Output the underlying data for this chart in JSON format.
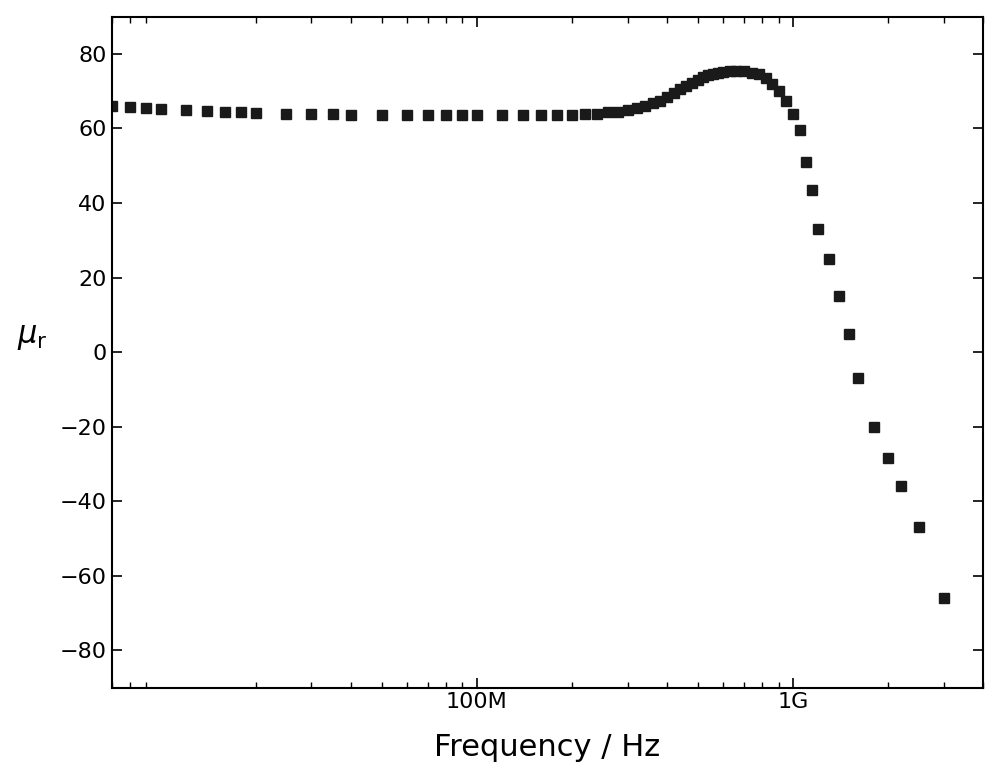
{
  "title": "",
  "xlabel": "Frequency / Hz",
  "ylabel": "$\\mu_{\\mathrm{r}}$",
  "xlim_log": [
    7000000.0,
    4000000000.0
  ],
  "ylim": [
    -90,
    90
  ],
  "yticks": [
    -80,
    -60,
    -40,
    -20,
    0,
    20,
    40,
    60,
    80
  ],
  "xtick_positions": [
    100000000.0,
    1000000000.0
  ],
  "xtick_labels": [
    "100M",
    "1G"
  ],
  "marker": "s",
  "marker_color": "#1a1a1a",
  "marker_size": 7,
  "background_color": "#ffffff",
  "xlabel_fontsize": 22,
  "ylabel_fontsize": 22,
  "tick_fontsize": 16,
  "frequencies": [
    7000000,
    8000000,
    9000000,
    10000000,
    12000000,
    14000000,
    16000000,
    18000000,
    20000000,
    25000000,
    30000000,
    35000000,
    40000000,
    50000000,
    60000000,
    70000000,
    80000000,
    90000000,
    100000000,
    120000000,
    140000000,
    160000000,
    180000000,
    200000000,
    220000000,
    240000000,
    260000000,
    280000000,
    300000000,
    320000000,
    340000000,
    360000000,
    380000000,
    400000000,
    420000000,
    440000000,
    460000000,
    480000000,
    500000000,
    520000000,
    540000000,
    560000000,
    580000000,
    600000000,
    630000000,
    660000000,
    700000000,
    740000000,
    780000000,
    820000000,
    860000000,
    900000000,
    950000000,
    1000000000,
    1050000000,
    1100000000,
    1150000000,
    1200000000,
    1300000000,
    1400000000,
    1500000000,
    1600000000,
    1800000000,
    2000000000,
    2200000000,
    2500000000,
    3000000000
  ],
  "mu_r": [
    66.0,
    65.8,
    65.5,
    65.3,
    65.0,
    64.8,
    64.5,
    64.3,
    64.2,
    64.0,
    63.9,
    63.8,
    63.7,
    63.6,
    63.5,
    63.5,
    63.5,
    63.5,
    63.5,
    63.5,
    63.5,
    63.5,
    63.6,
    63.7,
    63.8,
    64.0,
    64.3,
    64.5,
    65.0,
    65.5,
    66.0,
    66.8,
    67.5,
    68.5,
    69.5,
    70.5,
    71.5,
    72.3,
    73.0,
    73.8,
    74.3,
    74.7,
    75.0,
    75.2,
    75.3,
    75.4,
    75.3,
    75.0,
    74.5,
    73.5,
    72.0,
    70.0,
    67.5,
    64.0,
    59.5,
    51.0,
    43.5,
    33.0,
    25.0,
    15.0,
    5.0,
    -7.0,
    -20.0,
    -28.5,
    -36.0,
    -47.0,
    -66.0
  ]
}
